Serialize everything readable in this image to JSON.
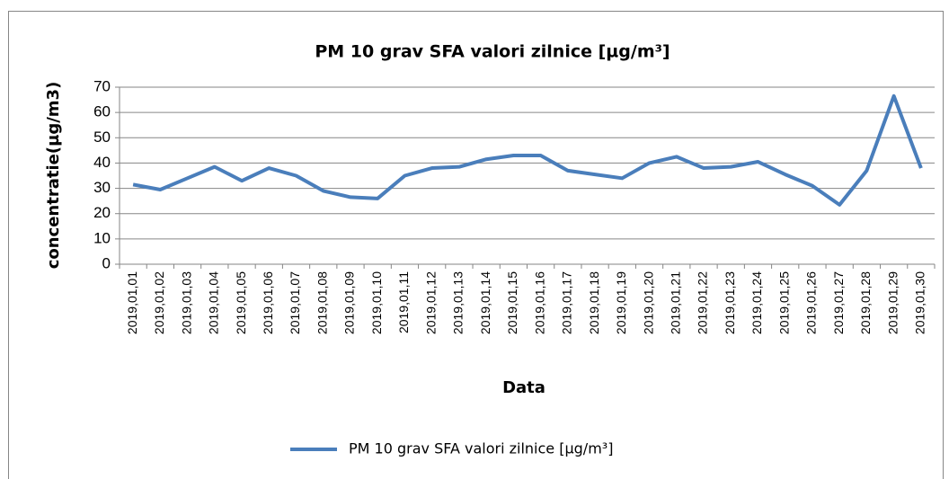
{
  "chart_data": {
    "type": "line",
    "title": "PM 10 grav SFA valori zilnice  [µg/m³]",
    "x_label": "Data",
    "y_label": "concentratie(µg/m3)",
    "categories": [
      "2019,01,01",
      "2019,01,02",
      "2019,01,03",
      "2019,01,04",
      "2019,01,05",
      "2019,01,06",
      "2019,01,07",
      "2019,01,08",
      "2019,01,09",
      "2019,01,10",
      "2019,01,11",
      "2019,01,12",
      "2019,01,13",
      "2019,01,14",
      "2019,01,15",
      "2019,01,16",
      "2019,01,17",
      "2019,01,18",
      "2019,01,19",
      "2019,01,20",
      "2019,01,21",
      "2019,01,22",
      "2019,01,23",
      "2019,01,24",
      "2019,01,25",
      "2019,01,26",
      "2019,01,27",
      "2019,01,28",
      "2019,01,29",
      "2019,01,30"
    ],
    "series": [
      {
        "name": "PM 10 grav SFA valori zilnice  [µg/m³]",
        "color": "#4a7ebb",
        "values": [
          31.5,
          29.5,
          34,
          38.5,
          33,
          38,
          35,
          29,
          26.5,
          26,
          35,
          38,
          38.5,
          41.5,
          43,
          43,
          37,
          35.5,
          34,
          40,
          42.5,
          38,
          38.5,
          40.5,
          35.5,
          31,
          23.5,
          37,
          66.5,
          38
        ]
      }
    ],
    "ylim": [
      0,
      70
    ],
    "yticks": [
      0,
      10,
      20,
      30,
      40,
      50,
      60,
      70
    ],
    "grid": true,
    "legend": "bottom"
  }
}
